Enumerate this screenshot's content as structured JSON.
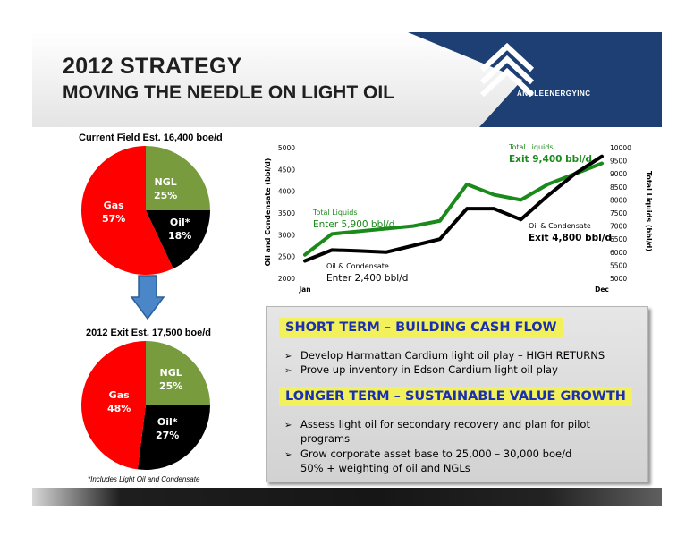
{
  "header": {
    "title_line1": "2012 STRATEGY",
    "title_line2": "MOVING THE NEEDLE ON LIGHT OIL",
    "logo_text": "ANGLEENERGYINC",
    "colors": {
      "banner": "#1d3f73",
      "background_top": "#ffffff"
    }
  },
  "pies": {
    "current": {
      "title": "Current Field Est.  16,400 boe/d",
      "slices": [
        {
          "label": "NGL",
          "value": 25,
          "pct": "25%",
          "color": "#779b3d"
        },
        {
          "label": "Oil*",
          "value": 18,
          "pct": "18%",
          "color": "#000000"
        },
        {
          "label": "Gas",
          "value": 57,
          "pct": "57%",
          "color": "#ff0000"
        }
      ]
    },
    "exit": {
      "title": "2012 Exit Est.  17,500 boe/d",
      "slices": [
        {
          "label": "NGL",
          "value": 25,
          "pct": "25%",
          "color": "#779b3d"
        },
        {
          "label": "Oil*",
          "value": 27,
          "pct": "27%",
          "color": "#000000"
        },
        {
          "label": "Gas",
          "value": 48,
          "pct": "48%",
          "color": "#ff0000"
        }
      ]
    },
    "arrow_color": "#4a86c8",
    "footnote": "*Includes Light Oil and Condensate"
  },
  "chart_data": [
    {
      "type": "pie",
      "title": "Current Field Est.  16,400 boe/d",
      "categories": [
        "NGL",
        "Oil*",
        "Gas"
      ],
      "values": [
        25,
        18,
        57
      ]
    },
    {
      "type": "pie",
      "title": "2012 Exit Est.  17,500 boe/d",
      "categories": [
        "NGL",
        "Oil*",
        "Gas"
      ],
      "values": [
        25,
        27,
        48
      ]
    },
    {
      "type": "line",
      "x_labels": [
        "Jan",
        "Dec"
      ],
      "ylabel": "Oil and Condensate (bbl/d)",
      "ylabel_right": "Total Liquids (bbl/d)",
      "ylim": [
        2000,
        5000
      ],
      "yticks": [
        2000,
        2500,
        3000,
        3500,
        4000,
        4500,
        5000
      ],
      "ylim_right": [
        5000,
        10000
      ],
      "yticks_right": [
        5000,
        5500,
        6000,
        6500,
        7000,
        7500,
        8000,
        8500,
        9000,
        9500,
        10000
      ],
      "grid": false,
      "series": [
        {
          "name": "Total Liquids",
          "axis": "right",
          "color": "#1a8a1a",
          "values": [
            5900,
            6700,
            6800,
            6900,
            7000,
            7200,
            8600,
            8200,
            8000,
            8600,
            9000,
            9400
          ]
        },
        {
          "name": "Oil & Condensate",
          "axis": "left",
          "color": "#000000",
          "values": [
            2400,
            2650,
            2630,
            2600,
            2750,
            2900,
            3600,
            3600,
            3350,
            3900,
            4400,
            4800
          ]
        }
      ],
      "annotations": [
        {
          "title": "Total Liquids",
          "text": "Enter 5,900 bbl/d"
        },
        {
          "title": "Total Liquids",
          "text": "Exit 9,400 bbl/d"
        },
        {
          "title": "Oil & Condensate",
          "text": "Enter 2,400 bbl/d"
        },
        {
          "title": "Oil & Condensate",
          "text": "Exit 4,800 bbl/d"
        }
      ]
    }
  ],
  "strategy": {
    "short_term": {
      "heading": "SHORT TERM – BUILDING CASH FLOW",
      "bullets": [
        "Develop Harmattan Cardium light oil play – HIGH RETURNS",
        "Prove up inventory in Edson Cardium light oil play"
      ]
    },
    "longer_term": {
      "heading": "LONGER TERM – SUSTAINABLE VALUE GROWTH",
      "bullets": [
        {
          "line1": "Assess light oil for secondary recovery and plan for pilot",
          "line2": "programs"
        },
        {
          "line1": "Grow corporate asset base to 25,000 – 30,000 boe/d",
          "line2": "50% + weighting of oil and NGLs"
        }
      ]
    },
    "bullet_glyph": "➢",
    "colors": {
      "highlight": "#f2f05b",
      "heading_text": "#1a2fb2"
    }
  }
}
